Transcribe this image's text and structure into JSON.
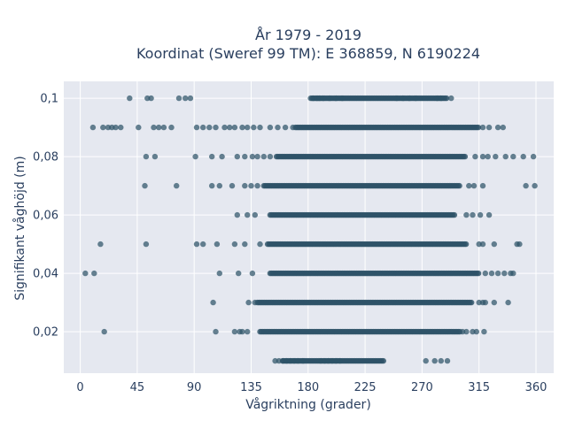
{
  "chart_data": {
    "type": "scatter",
    "title_line1": "År 1979 - 2019",
    "title_line2": "Koordinat (Sweref 99 TM): E 368859, N 6190224",
    "xlabel": "Vågriktning (grader)",
    "ylabel": "Signifikant våghöjd (m)",
    "xlim": [
      -13,
      374
    ],
    "ylim": [
      0.0058,
      0.1058
    ],
    "x_ticks": [
      {
        "value": 0,
        "label": "0"
      },
      {
        "value": 45,
        "label": "45"
      },
      {
        "value": 90,
        "label": "90"
      },
      {
        "value": 135,
        "label": "135"
      },
      {
        "value": 180,
        "label": "180"
      },
      {
        "value": 225,
        "label": "225"
      },
      {
        "value": 270,
        "label": "270"
      },
      {
        "value": 315,
        "label": "315"
      },
      {
        "value": 360,
        "label": "360"
      }
    ],
    "y_ticks": [
      {
        "value": 0.02,
        "label": "0,02"
      },
      {
        "value": 0.04,
        "label": "0,04"
      },
      {
        "value": 0.06,
        "label": "0,06"
      },
      {
        "value": 0.08,
        "label": "0,08"
      },
      {
        "value": 0.1,
        "label": "0,1"
      }
    ],
    "grid": true,
    "marker_color": "#2e5368",
    "plot_background": "#e5e8f0",
    "height_levels": [
      {
        "y": 0.01,
        "dense_range": [
          160,
          240
        ],
        "sparse_points": [
          154,
          157,
          160,
          163,
          166,
          169,
          172,
          176,
          190,
          193,
          196,
          199,
          202,
          205,
          273,
          280,
          285,
          290
        ]
      },
      {
        "y": 0.02,
        "dense_range": [
          142,
          300
        ],
        "sparse_points": [
          19,
          107,
          122,
          126,
          128,
          132,
          302,
          305,
          310,
          313,
          319
        ]
      },
      {
        "y": 0.03,
        "dense_range": [
          140,
          310
        ],
        "sparse_points": [
          105,
          133,
          138,
          315,
          318,
          320,
          327,
          338
        ]
      },
      {
        "y": 0.04,
        "dense_range": [
          150,
          315
        ],
        "sparse_points": [
          4,
          11,
          110,
          125,
          136,
          320,
          325,
          330,
          335,
          340,
          342
        ]
      },
      {
        "y": 0.05,
        "dense_range": [
          148,
          305
        ],
        "sparse_points": [
          16,
          52,
          92,
          97,
          108,
          122,
          130,
          142,
          315,
          318,
          327,
          345,
          347
        ]
      },
      {
        "y": 0.06,
        "dense_range": [
          150,
          296
        ],
        "sparse_points": [
          124,
          132,
          138,
          305,
          310,
          316,
          323
        ]
      },
      {
        "y": 0.07,
        "dense_range": [
          145,
          300
        ],
        "sparse_points": [
          51,
          76,
          104,
          110,
          120,
          130,
          135,
          140,
          307,
          311,
          318,
          352,
          359
        ]
      },
      {
        "y": 0.08,
        "dense_range": [
          155,
          305
        ],
        "sparse_points": [
          52,
          59,
          91,
          104,
          112,
          124,
          130,
          136,
          140,
          145,
          150,
          312,
          318,
          322,
          328,
          336,
          342,
          350,
          358
        ]
      },
      {
        "y": 0.09,
        "dense_range": [
          170,
          315
        ],
        "sparse_points": [
          10,
          18,
          22,
          25,
          28,
          32,
          46,
          58,
          62,
          66,
          72,
          92,
          97,
          102,
          107,
          114,
          118,
          122,
          128,
          132,
          137,
          142,
          150,
          156,
          162,
          168,
          318,
          323,
          330,
          334
        ]
      },
      {
        "y": 0.1,
        "dense_range": [
          183,
          290
        ],
        "sparse_points": [
          39,
          53,
          56,
          78,
          83,
          87,
          182,
          184,
          187,
          189,
          192,
          197,
          202,
          207,
          250,
          255,
          260,
          265,
          282,
          285,
          293
        ]
      }
    ]
  }
}
